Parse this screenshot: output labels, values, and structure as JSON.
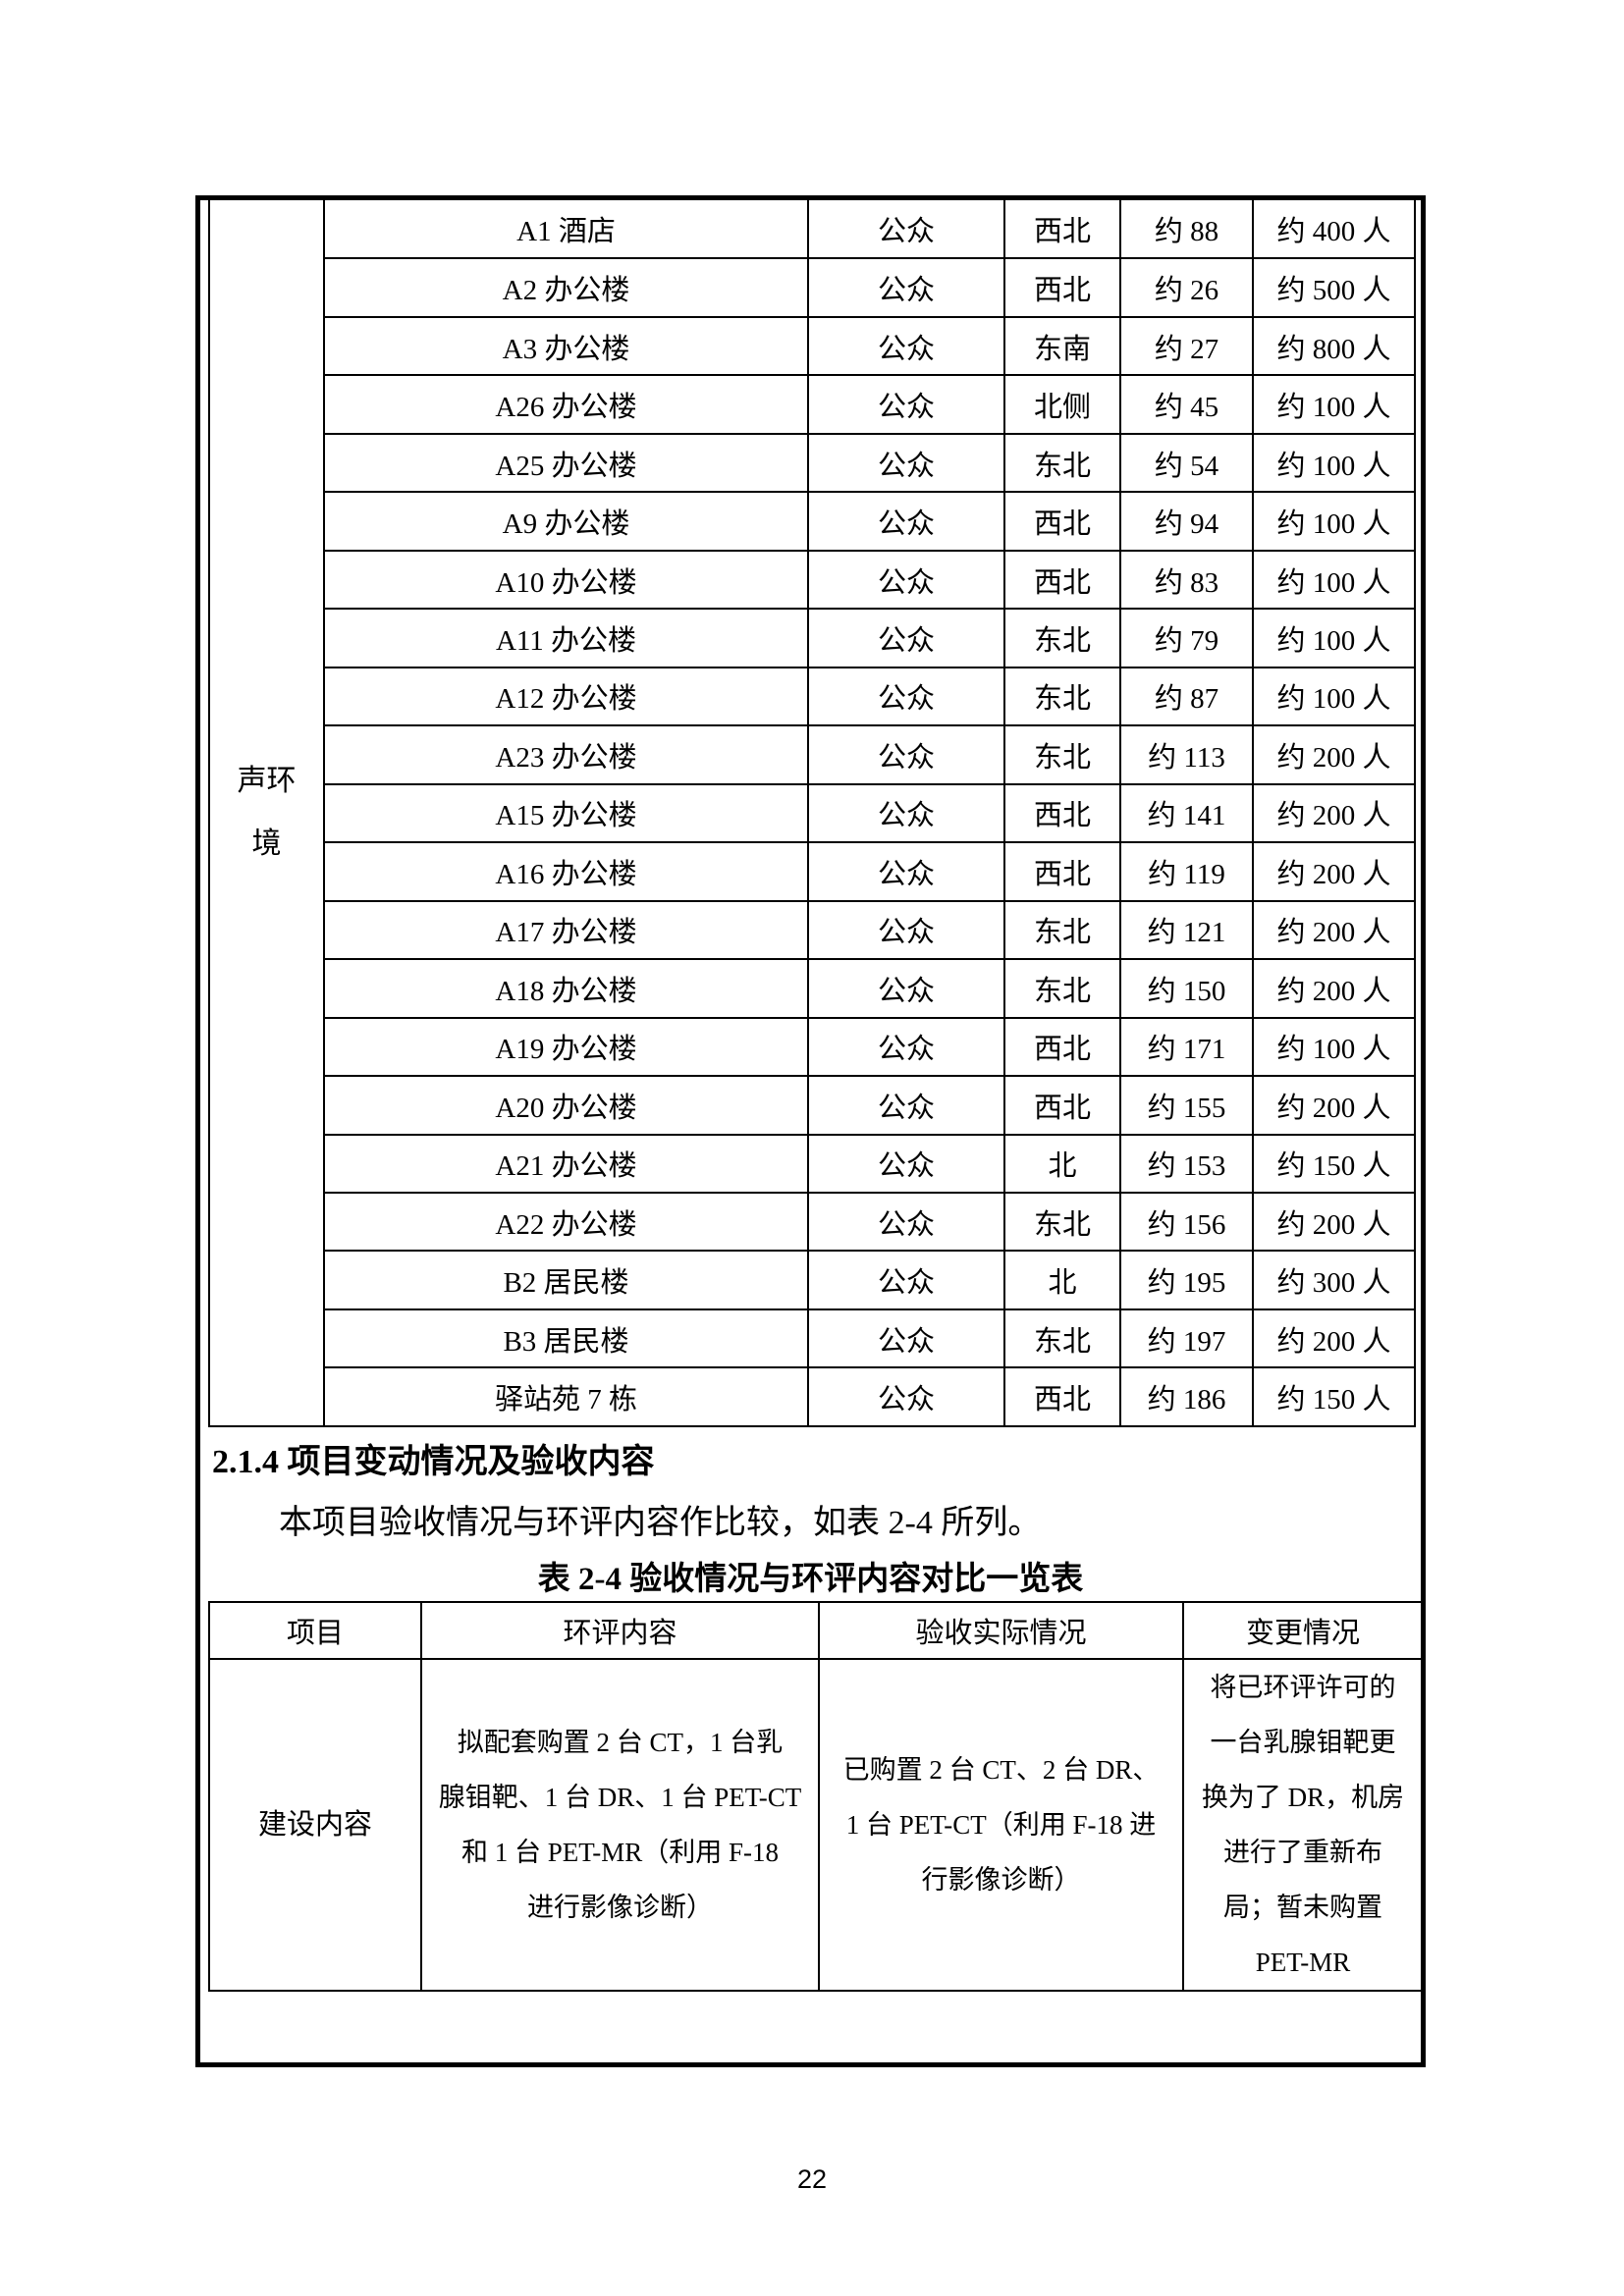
{
  "page_number": "22",
  "noise_table": {
    "group_label": "声环境",
    "rows": [
      {
        "name": "A1 酒店",
        "receptor": "公众",
        "direction": "西北",
        "distance": "约 88",
        "population": "约 400 人"
      },
      {
        "name": "A2 办公楼",
        "receptor": "公众",
        "direction": "西北",
        "distance": "约 26",
        "population": "约 500 人"
      },
      {
        "name": "A3 办公楼",
        "receptor": "公众",
        "direction": "东南",
        "distance": "约 27",
        "population": "约 800 人"
      },
      {
        "name": "A26 办公楼",
        "receptor": "公众",
        "direction": "北侧",
        "distance": "约 45",
        "population": "约 100 人"
      },
      {
        "name": "A25 办公楼",
        "receptor": "公众",
        "direction": "东北",
        "distance": "约 54",
        "population": "约 100 人"
      },
      {
        "name": "A9 办公楼",
        "receptor": "公众",
        "direction": "西北",
        "distance": "约 94",
        "population": "约 100 人"
      },
      {
        "name": "A10 办公楼",
        "receptor": "公众",
        "direction": "西北",
        "distance": "约 83",
        "population": "约 100 人"
      },
      {
        "name": "A11 办公楼",
        "receptor": "公众",
        "direction": "东北",
        "distance": "约 79",
        "population": "约 100 人"
      },
      {
        "name": "A12 办公楼",
        "receptor": "公众",
        "direction": "东北",
        "distance": "约 87",
        "population": "约 100 人"
      },
      {
        "name": "A23 办公楼",
        "receptor": "公众",
        "direction": "东北",
        "distance": "约 113",
        "population": "约 200 人"
      },
      {
        "name": "A15 办公楼",
        "receptor": "公众",
        "direction": "西北",
        "distance": "约 141",
        "population": "约 200 人"
      },
      {
        "name": "A16 办公楼",
        "receptor": "公众",
        "direction": "西北",
        "distance": "约 119",
        "population": "约 200 人"
      },
      {
        "name": "A17 办公楼",
        "receptor": "公众",
        "direction": "东北",
        "distance": "约 121",
        "population": "约 200 人"
      },
      {
        "name": "A18 办公楼",
        "receptor": "公众",
        "direction": "东北",
        "distance": "约 150",
        "population": "约 200 人"
      },
      {
        "name": "A19 办公楼",
        "receptor": "公众",
        "direction": "西北",
        "distance": "约 171",
        "population": "约 100 人"
      },
      {
        "name": "A20 办公楼",
        "receptor": "公众",
        "direction": "西北",
        "distance": "约 155",
        "population": "约 200 人"
      },
      {
        "name": "A21 办公楼",
        "receptor": "公众",
        "direction": "北",
        "distance": "约 153",
        "population": "约 150 人"
      },
      {
        "name": "A22 办公楼",
        "receptor": "公众",
        "direction": "东北",
        "distance": "约 156",
        "population": "约 200 人"
      },
      {
        "name": "B2 居民楼",
        "receptor": "公众",
        "direction": "北",
        "distance": "约 195",
        "population": "约 300 人"
      },
      {
        "name": "B3 居民楼",
        "receptor": "公众",
        "direction": "东北",
        "distance": "约 197",
        "population": "约 200 人"
      },
      {
        "name": "驿站苑 7 栋",
        "receptor": "公众",
        "direction": "西北",
        "distance": "约 186",
        "population": "约 150 人"
      }
    ]
  },
  "section": {
    "heading": "2.1.4 项目变动情况及验收内容",
    "intro": "本项目验收情况与环评内容作比较，如表 2-4 所列。",
    "table_caption": "表 2-4 验收情况与环评内容对比一览表"
  },
  "compare_table": {
    "headers": [
      "项目",
      "环评内容",
      "验收实际情况",
      "变更情况"
    ],
    "row": {
      "item": "建设内容",
      "eia_content": "拟配套购置 2 台 CT，1 台乳\n腺钼靶、1 台 DR、1 台 PET-CT\n和 1 台 PET-MR（利用 F-18\n进行影像诊断）",
      "acceptance_actual": "已购置 2 台 CT、2 台 DR、\n1 台 PET-CT（利用 F-18 进\n行影像诊断）",
      "change": "将已环评许可的\n一台乳腺钼靶更\n换为了 DR，机房\n进行了重新布\n局；暂未购置\nPET-MR"
    }
  }
}
